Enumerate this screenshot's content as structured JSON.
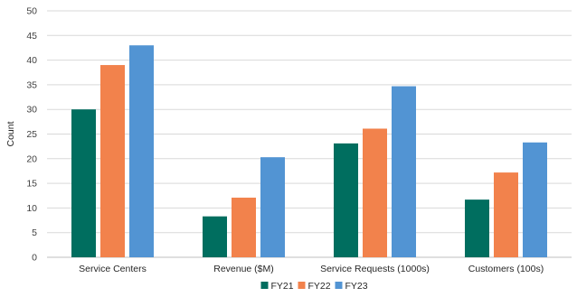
{
  "chart_data": {
    "type": "bar",
    "title": "",
    "xlabel": "",
    "ylabel": "Count",
    "ylim": [
      0,
      50
    ],
    "yticks": [
      0,
      5,
      10,
      15,
      20,
      25,
      30,
      35,
      40,
      45,
      50
    ],
    "categories": [
      "Service Centers",
      "Revenue ($M)",
      "Service Requests (1000s)",
      "Customers (100s)"
    ],
    "series": [
      {
        "name": "FY21",
        "color": "#006e5f",
        "values": [
          30,
          8.3,
          23.1,
          11.7
        ]
      },
      {
        "name": "FY22",
        "color": "#f2824c",
        "values": [
          39,
          12.1,
          26.1,
          17.2
        ]
      },
      {
        "name": "FY23",
        "color": "#5294d3",
        "values": [
          43,
          20.3,
          34.7,
          23.3
        ]
      }
    ],
    "grid": true,
    "legend": "bottom-center"
  }
}
